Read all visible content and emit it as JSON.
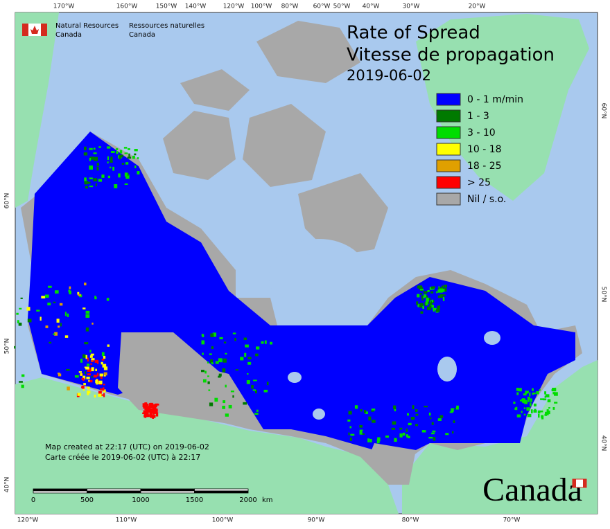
{
  "header": {
    "title_en": "Rate of Spread",
    "title_fr": "Vitesse de propagation",
    "date": "2019-06-02"
  },
  "agency": {
    "name_en_1": "Natural Resources",
    "name_en_2": "Canada",
    "name_fr_1": "Ressources naturelles",
    "name_fr_2": "Canada"
  },
  "legend": [
    {
      "label": "0 - 1 m/min",
      "color": "#0000ff"
    },
    {
      "label": "1 - 3",
      "color": "#007a00"
    },
    {
      "label": "3 - 10",
      "color": "#00dd00"
    },
    {
      "label": "10 - 18",
      "color": "#ffff00"
    },
    {
      "label": "18 - 25",
      "color": "#e0a000"
    },
    {
      "label": "> 25",
      "color": "#ff0000"
    },
    {
      "label": "Nil / s.o.",
      "color": "#a8a8a8"
    }
  ],
  "graticule": {
    "top": [
      "170°W",
      "160°W",
      "150°W",
      "140°W",
      "120°W",
      "100°W",
      "80°W",
      "60°W",
      "50°W",
      "40°W",
      "30°W",
      "20°W"
    ],
    "bottom": [
      "120°W",
      "110°W",
      "100°W",
      "90°W",
      "80°W",
      "70°W"
    ],
    "left": [
      "60°N",
      "50°N",
      "40°N"
    ],
    "right": [
      "60°N",
      "50°N",
      "40°N"
    ]
  },
  "note": [
    "Map created at 22:17 (UTC) on 2019-06-02",
    "Carte créée le 2019-06-02 (UTC) à 22:17"
  ],
  "scale_bar": {
    "ticks": [
      0,
      500,
      1000,
      1500,
      2000
    ],
    "unit": "km"
  },
  "wordmark": "Canada"
}
